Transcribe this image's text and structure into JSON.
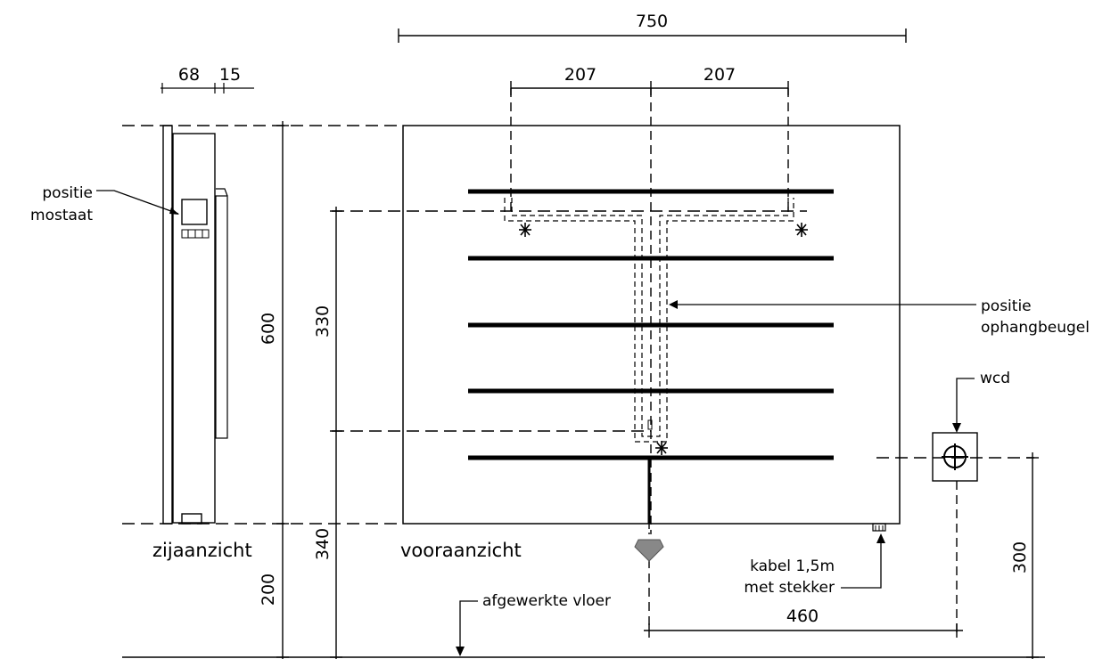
{
  "dimensions": {
    "total_width": "750",
    "bracket_left": "207",
    "bracket_right": "207",
    "side_depth": "68",
    "side_gap": "15",
    "total_height": "600",
    "bracket_height": "330",
    "bottom_to_fixing": "340",
    "floor_clearance": "200",
    "socket_height": "300",
    "socket_offset": "460"
  },
  "labels": {
    "thermostat_position_line1": "positie",
    "thermostat_position_line2": "mostaat",
    "bracket_position_line1": "positie",
    "bracket_position_line2": "ophangbeugel",
    "socket": "wcd",
    "cable_line1": "kabel  1,5m",
    "cable_line2": "met  stekker",
    "floor": "afgewerkte  vloer",
    "side_view": "zijaanzicht",
    "front_view": "vooraanzicht"
  }
}
